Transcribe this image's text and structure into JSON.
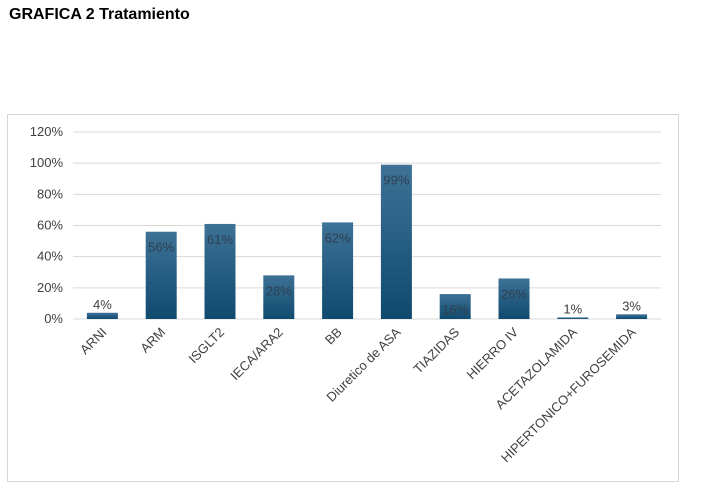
{
  "page": {
    "title": "GRAFICA 2 Tratamiento"
  },
  "chart_data": {
    "type": "bar",
    "title": "",
    "xlabel": "",
    "ylabel": "",
    "categories": [
      "ARNI",
      "ARM",
      "ISGLT2",
      "IECA/ARA2",
      "BB",
      "Diuretico de ASA",
      "TIAZIDAS",
      "HIERRO IV",
      "ACETAZOLAMIDA",
      "HIPERTONICO+FUROSEMIDA"
    ],
    "values": [
      4,
      56,
      61,
      28,
      62,
      99,
      16,
      26,
      1,
      3
    ],
    "data_labels": [
      "4%",
      "56%",
      "61%",
      "28%",
      "62%",
      "99%",
      "16%",
      "26%",
      "1%",
      "3%"
    ],
    "y_ticks": [
      0,
      20,
      40,
      60,
      80,
      100,
      120
    ],
    "y_tick_labels": [
      "0%",
      "20%",
      "40%",
      "60%",
      "80%",
      "100%",
      "120%"
    ],
    "ylim": [
      0,
      120
    ],
    "grid": true,
    "legend": "none",
    "colors": {
      "bar_top": "#3e7297",
      "bar_bottom": "#0f4a6e",
      "grid": "#d9d9d9",
      "label_inside": "#2f3f4f",
      "label_outside": "#404040"
    }
  }
}
